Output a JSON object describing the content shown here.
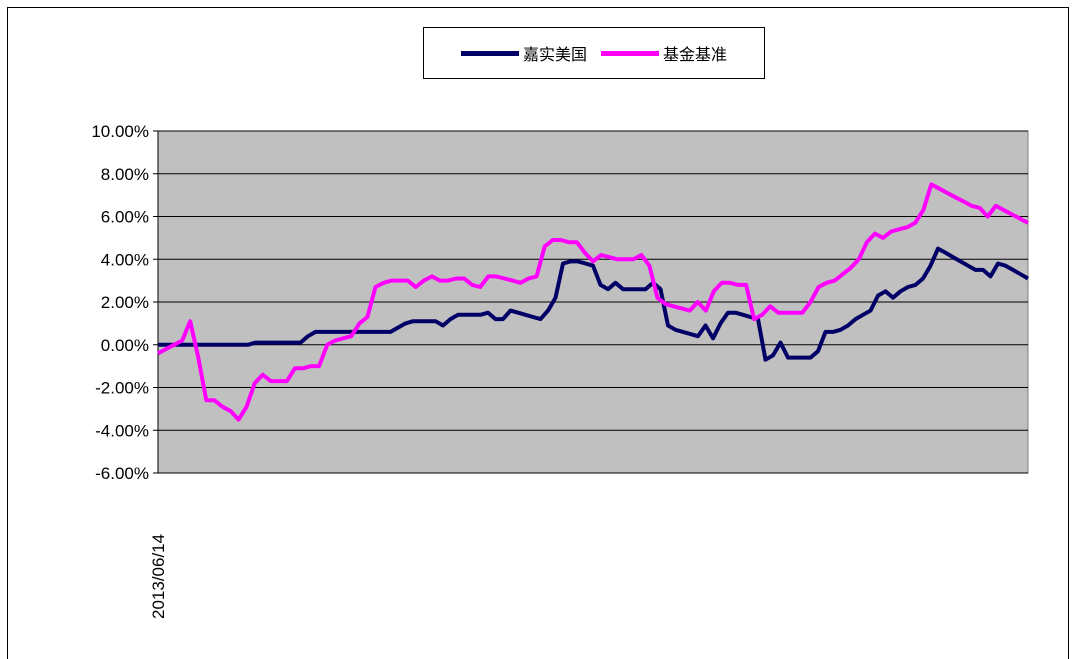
{
  "chart_data": {
    "type": "line",
    "title": "",
    "xlabel": "",
    "ylabel": "",
    "x_tick_labels": [
      "2013/06/14"
    ],
    "ylim": [
      -0.06,
      0.1
    ],
    "y_ticks": [
      {
        "value": 0.1,
        "label": "10.00%"
      },
      {
        "value": 0.08,
        "label": "8.00%"
      },
      {
        "value": 0.06,
        "label": "6.00%"
      },
      {
        "value": 0.04,
        "label": "4.00%"
      },
      {
        "value": 0.02,
        "label": "2.00%"
      },
      {
        "value": 0.0,
        "label": "0.00%"
      },
      {
        "value": -0.02,
        "label": "-2.00%"
      },
      {
        "value": -0.04,
        "label": "-4.00%"
      },
      {
        "value": -0.06,
        "label": "-6.00%"
      }
    ],
    "grid": true,
    "legend_position": "top-center",
    "plot_background": "#c0c0c0",
    "series": [
      {
        "name": "嘉实美国",
        "color": "#000066",
        "values": [
          0.0,
          0.0,
          0.0,
          0.0,
          0.0,
          0.0,
          0.0,
          0.0,
          0.0,
          0.0,
          0.0,
          0.0,
          0.0,
          0.001,
          0.001,
          0.001,
          0.001,
          0.001,
          0.001,
          0.001,
          0.004,
          0.006,
          0.006,
          0.006,
          0.006,
          0.006,
          0.006,
          0.006,
          0.006,
          0.006,
          0.006,
          0.006,
          0.008,
          0.01,
          0.011,
          0.011,
          0.011,
          0.011,
          0.009,
          0.012,
          0.014,
          0.014,
          0.014,
          0.014,
          0.015,
          0.012,
          0.012,
          0.016,
          0.015,
          0.014,
          0.013,
          0.012,
          0.016,
          0.022,
          0.038,
          0.039,
          0.039,
          0.038,
          0.037,
          0.028,
          0.026,
          0.029,
          0.026,
          0.026,
          0.026,
          0.026,
          0.029,
          0.026,
          0.009,
          0.007,
          0.006,
          0.005,
          0.004,
          0.009,
          0.003,
          0.01,
          0.015,
          0.015,
          0.014,
          0.013,
          0.012,
          -0.007,
          -0.005,
          0.001,
          -0.006,
          -0.006,
          -0.006,
          -0.006,
          -0.003,
          0.006,
          0.006,
          0.007,
          0.009,
          0.012,
          0.014,
          0.016,
          0.023,
          0.025,
          0.022,
          0.025,
          0.027,
          0.028,
          0.031,
          0.037,
          0.045,
          0.043,
          0.041,
          0.039,
          0.037,
          0.035,
          0.035,
          0.032,
          0.038,
          0.037,
          0.035,
          0.033,
          0.031
        ]
      },
      {
        "name": "基金基准",
        "color": "#ff00ff",
        "values": [
          -0.004,
          -0.002,
          0.0,
          0.002,
          0.011,
          -0.006,
          -0.026,
          -0.026,
          -0.029,
          -0.031,
          -0.035,
          -0.029,
          -0.018,
          -0.014,
          -0.017,
          -0.017,
          -0.017,
          -0.011,
          -0.011,
          -0.01,
          -0.01,
          0.0,
          0.002,
          0.003,
          0.004,
          0.01,
          0.013,
          0.027,
          0.029,
          0.03,
          0.03,
          0.03,
          0.027,
          0.03,
          0.032,
          0.03,
          0.03,
          0.031,
          0.031,
          0.028,
          0.027,
          0.032,
          0.032,
          0.031,
          0.03,
          0.029,
          0.031,
          0.032,
          0.046,
          0.049,
          0.049,
          0.048,
          0.048,
          0.043,
          0.039,
          0.042,
          0.041,
          0.04,
          0.04,
          0.04,
          0.042,
          0.037,
          0.022,
          0.019,
          0.018,
          0.017,
          0.016,
          0.02,
          0.016,
          0.025,
          0.029,
          0.029,
          0.028,
          0.028,
          0.012,
          0.014,
          0.018,
          0.015,
          0.015,
          0.015,
          0.015,
          0.02,
          0.027,
          0.029,
          0.03,
          0.033,
          0.036,
          0.04,
          0.048,
          0.052,
          0.05,
          0.053,
          0.054,
          0.055,
          0.057,
          0.063,
          0.075,
          0.073,
          0.071,
          0.069,
          0.067,
          0.065,
          0.064,
          0.06,
          0.065,
          0.063,
          0.061,
          0.059,
          0.057
        ]
      }
    ]
  }
}
